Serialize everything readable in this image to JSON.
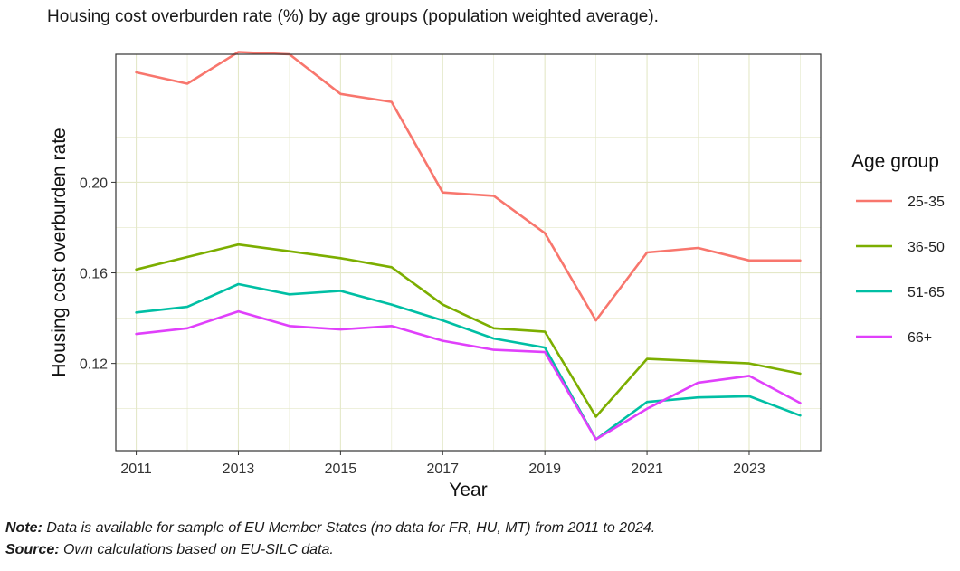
{
  "title": "Housing cost overburden rate (%) by age groups (population weighted average).",
  "chart_data": {
    "type": "line",
    "xlabel": "Year",
    "ylabel": "Housing cost overburden rate",
    "x": [
      2011,
      2012,
      2013,
      2014,
      2015,
      2016,
      2017,
      2018,
      2019,
      2020,
      2021,
      2022,
      2023,
      2024
    ],
    "xlim": [
      2010.6,
      2024.4
    ],
    "ylim": [
      0.0815,
      0.2565
    ],
    "x_ticks": [
      2011,
      2013,
      2015,
      2017,
      2019,
      2021,
      2023
    ],
    "x_tick_labels": [
      "2011",
      "2013",
      "2015",
      "2017",
      "2019",
      "2021",
      "2023"
    ],
    "y_ticks": [
      0.12,
      0.16,
      0.2
    ],
    "y_tick_labels": [
      "0.12",
      "0.16",
      "0.20"
    ],
    "grid": true,
    "legend": {
      "title": "Age group",
      "position": "right"
    },
    "series": [
      {
        "name": "25-35",
        "color": "#F8766D",
        "values": [
          0.2485,
          0.2435,
          0.2575,
          0.2565,
          0.239,
          0.2355,
          0.1955,
          0.194,
          0.1775,
          0.139,
          0.169,
          0.171,
          0.1655,
          0.1655
        ]
      },
      {
        "name": "36-50",
        "color": "#7CAE00",
        "values": [
          0.1615,
          0.167,
          0.1725,
          0.1695,
          0.1665,
          0.1625,
          0.146,
          0.1355,
          0.134,
          0.0965,
          0.122,
          0.121,
          0.12,
          0.1155
        ]
      },
      {
        "name": "51-65",
        "color": "#00BFA4",
        "values": [
          0.1425,
          0.145,
          0.155,
          0.1505,
          0.152,
          0.146,
          0.139,
          0.131,
          0.127,
          0.0865,
          0.103,
          0.105,
          0.1055,
          0.097
        ]
      },
      {
        "name": "66+",
        "color": "#E040FB",
        "values": [
          0.133,
          0.1355,
          0.143,
          0.1365,
          0.135,
          0.1365,
          0.13,
          0.126,
          0.125,
          0.0865,
          0.1,
          0.1115,
          0.1145,
          0.1025
        ]
      }
    ]
  },
  "footer": {
    "note_label": "Note:",
    "note_text": " Data is available for sample of EU Member States (no data for FR, HU, MT) from 2011 to 2024.",
    "source_label": "Source:",
    "source_text": " Own calculations based on EU-SILC data."
  }
}
